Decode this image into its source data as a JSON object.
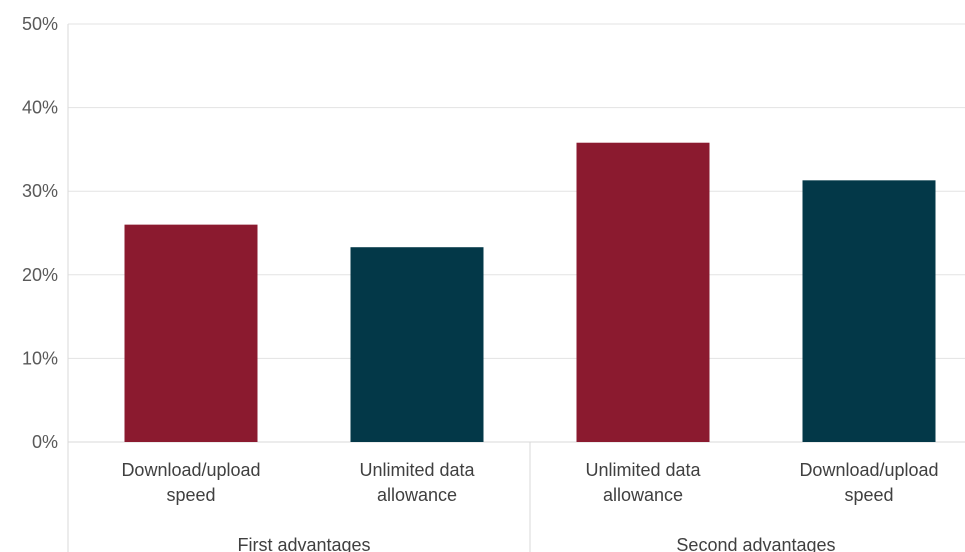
{
  "chart_data": {
    "type": "bar",
    "categories": [
      [
        "Download/upload",
        "speed"
      ],
      [
        "Unlimited data",
        "allowance"
      ],
      [
        "Unlimited data",
        "allowance"
      ],
      [
        "Download/upload",
        "speed"
      ]
    ],
    "groups": [
      {
        "label": "First advantages",
        "span": [
          0,
          1
        ]
      },
      {
        "label": "Second advantages",
        "span": [
          2,
          3
        ]
      }
    ],
    "values": [
      0.26,
      0.233,
      0.358,
      0.313
    ],
    "bar_colors": [
      "#8b1a2f",
      "#033848",
      "#8b1a2f",
      "#033848"
    ],
    "title": "",
    "xlabel": "",
    "ylabel": "",
    "ylim": [
      0,
      0.5
    ],
    "yticks": [
      "0%",
      "10%",
      "20%",
      "30%",
      "40%",
      "50%"
    ],
    "grid": true,
    "legend": "none"
  }
}
